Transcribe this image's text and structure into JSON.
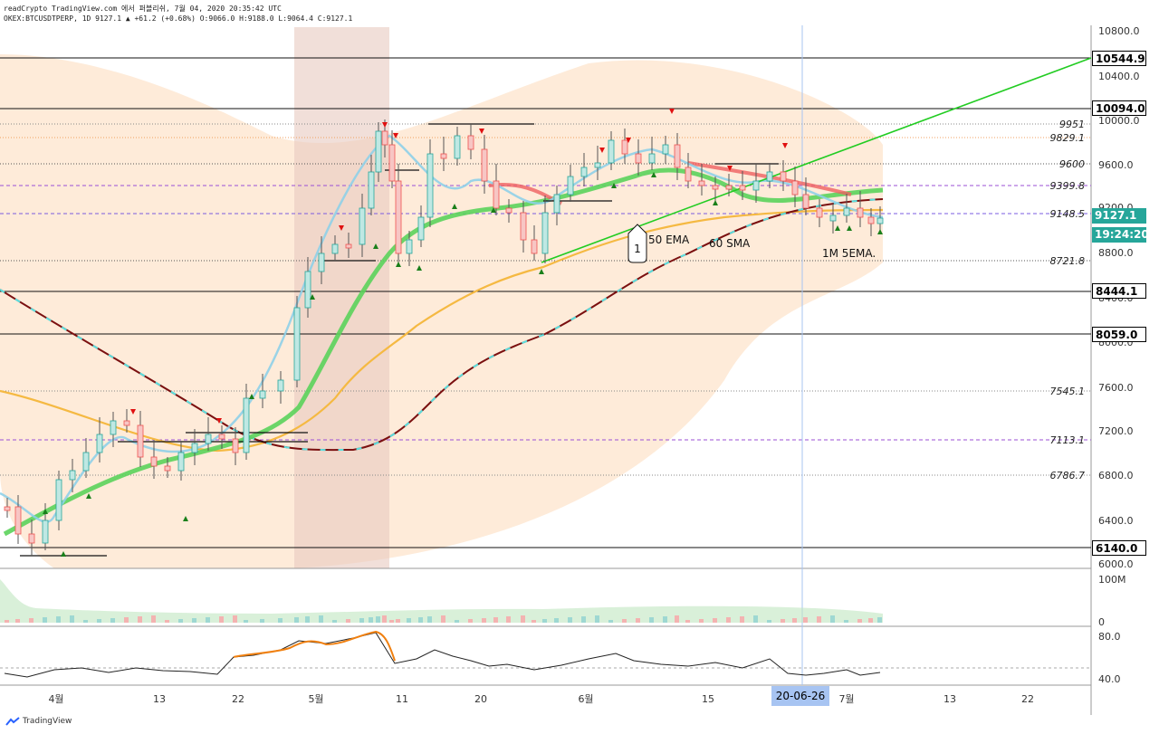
{
  "header": {
    "line1": "readCrypto TradingView.com 에서 퍼블리쉬, 7월 04, 2020 20:35:42 UTC",
    "line2": "OKEX:BTCUSDTPERP, 1D 9127.1 ▲ +61.2 (+0.68%) O:9066.0 H:9188.0 L:9064.4 C:9127.1"
  },
  "price_axis": {
    "ticks": [
      "10800.0",
      "10400.0",
      "10000.0",
      "9600.0",
      "9200.0",
      "8800.0",
      "8400.0",
      "8000.0",
      "7600.0",
      "7200.0",
      "6800.0",
      "6400.0",
      "6000.0"
    ]
  },
  "level_tags": {
    "l10544": "10544.9",
    "l10094": "10094.0",
    "l8444": "8444.1",
    "l8059": "8059.0",
    "l6140": "6140.0",
    "last_price": "9127.1",
    "countdown": "19:24:20"
  },
  "level_labels": {
    "l9951": "9951",
    "l9829": "9829.1",
    "l9600": "9600",
    "l9399": "9399.8",
    "l9148": "9148.5",
    "l8721": "8721.8",
    "l7545": "7545.1",
    "l7113": "7113.1",
    "l6786": "6786.7"
  },
  "volume_axis": {
    "top": "100M",
    "bottom": "0"
  },
  "rsi_axis": {
    "top": "80.0",
    "bottom": "40.0"
  },
  "time_axis": {
    "labels": [
      "4월",
      "13",
      "22",
      "5월",
      "11",
      "20",
      "6월",
      "15",
      "7월",
      "13",
      "22"
    ],
    "crosshair_date": "20-06-26"
  },
  "annotations": {
    "marker": "1",
    "ema50": "50 EMA",
    "sma60": "60 SMA",
    "ema5_1m": "1M 5EMA."
  },
  "branding": {
    "logo": "TradingView"
  },
  "colors": {
    "bull": "#26a69a",
    "bear": "#ef5350",
    "ema_green": "#5bd35b",
    "sma_orange": "#f5b942",
    "sma_dark": "#7a1010",
    "trend_green": "#22cc22",
    "band_fill": "#fbd7b8"
  }
}
